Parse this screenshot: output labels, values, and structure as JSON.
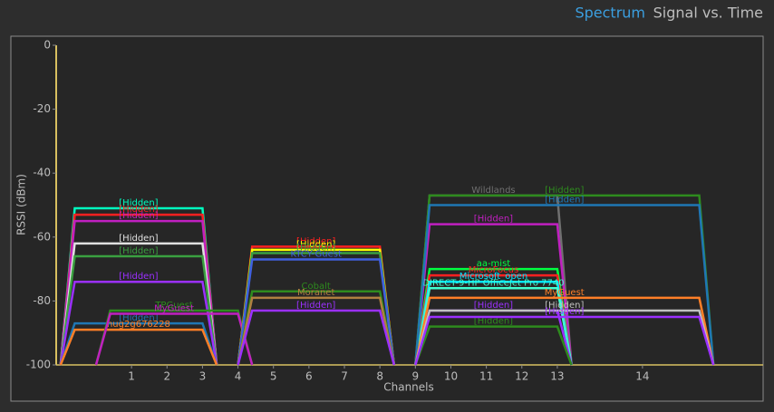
{
  "tabs": [
    "Spectrum",
    "Signal vs. Time"
  ],
  "chart_data": {
    "type": "spectrum",
    "y_label": "RSSI (dBm)",
    "x_label": "Channels",
    "ylim": [
      -100,
      0
    ],
    "yticks": [
      0,
      -20,
      -40,
      -60,
      -80,
      -100
    ],
    "xlim": [
      2395,
      2501
    ],
    "xticks": [
      {
        "value": 2412,
        "label": "1"
      },
      {
        "value": 2417,
        "label": "2"
      },
      {
        "value": 2422,
        "label": "3"
      },
      {
        "value": 2427,
        "label": "4"
      },
      {
        "value": 2432,
        "label": "5"
      },
      {
        "value": 2437,
        "label": "6"
      },
      {
        "value": 2442,
        "label": "7"
      },
      {
        "value": 2447,
        "label": "8"
      },
      {
        "value": 2452,
        "label": "9"
      },
      {
        "value": 2457,
        "label": "10"
      },
      {
        "value": 2462,
        "label": "11"
      },
      {
        "value": 2467,
        "label": "12"
      },
      {
        "value": 2472,
        "label": "13"
      },
      {
        "value": 2484,
        "label": "14"
      }
    ],
    "series": [
      {
        "name": "[Hidden]",
        "x": 2413,
        "width": 20,
        "value": -51,
        "color": "#00ffc0"
      },
      {
        "name": "[Hidden]",
        "x": 2413,
        "width": 20,
        "value": -53,
        "color": "#ff2020"
      },
      {
        "name": "[Hidden]",
        "x": 2413,
        "width": 20,
        "value": -55,
        "color": "#c020c0"
      },
      {
        "name": "[Hidden]",
        "x": 2413,
        "width": 20,
        "value": -62,
        "color": "#e0e0e0"
      },
      {
        "name": "[Hidden]",
        "x": 2413,
        "width": 20,
        "value": -66,
        "color": "#3aa040"
      },
      {
        "name": "[Hidden]",
        "x": 2413,
        "width": 20,
        "value": -74,
        "color": "#9b30ff"
      },
      {
        "name": "[Hidden]",
        "x": 2413,
        "width": 20,
        "value": -87,
        "color": "#1f77b4"
      },
      {
        "name": "hug2g676228",
        "x": 2413,
        "width": 20,
        "value": -89,
        "color": "#ff7f27"
      },
      {
        "name": "TPGuest",
        "x": 2418,
        "width": 20,
        "value": -83,
        "color": "#2e8b1e"
      },
      {
        "name": "MyGuest",
        "x": 2418,
        "width": 20,
        "value": -84,
        "color": "#c020c0"
      },
      {
        "name": "[Hidden]",
        "x": 2438,
        "width": 20,
        "value": -63,
        "color": "#ff2020"
      },
      {
        "name": "[Hidden]",
        "x": 2438,
        "width": 20,
        "value": -64,
        "color": "#ffff00"
      },
      {
        "name": "[Hidden]",
        "x": 2438,
        "width": 20,
        "value": -65,
        "color": "#3aa040"
      },
      {
        "name": "KTCY-Guest",
        "x": 2438,
        "width": 20,
        "value": -67,
        "color": "#4060e0"
      },
      {
        "name": "Cobalt",
        "x": 2438,
        "width": 20,
        "value": -77,
        "color": "#2e8b1e"
      },
      {
        "name": "Moranet",
        "x": 2438,
        "width": 20,
        "value": -79,
        "color": "#b08040"
      },
      {
        "name": "[Hidden]",
        "x": 2438,
        "width": 20,
        "value": -83,
        "color": "#9b30ff"
      },
      {
        "name": "Wildlands",
        "x": 2463,
        "width": 20,
        "value": -47,
        "color": "#707070"
      },
      {
        "name": "[Hidden]",
        "x": 2463,
        "width": 20,
        "value": -56,
        "color": "#c020c0"
      },
      {
        "name": "aa-mist",
        "x": 2463,
        "width": 20,
        "value": -70,
        "color": "#00ff40"
      },
      {
        "name": "MicroFocus",
        "x": 2463,
        "width": 20,
        "value": -72,
        "color": "#ff2020"
      },
      {
        "name": "Microsoft_open",
        "x": 2463,
        "width": 20,
        "value": -74,
        "color": "#00e5ff"
      },
      {
        "name": "DIRECT-9-HP OfficeJet Pro 7740",
        "x": 2463,
        "width": 20,
        "value": -76,
        "color": "#40ffd0"
      },
      {
        "name": "[Hidden]",
        "x": 2463,
        "width": 20,
        "value": -83,
        "color": "#9b30ff"
      },
      {
        "name": "[Hidden]",
        "x": 2463,
        "width": 20,
        "value": -88,
        "color": "#2e8b1e"
      },
      {
        "name": "[Hidden]",
        "x": 2473,
        "width": 40,
        "value": -47,
        "color": "#2e8b1e"
      },
      {
        "name": "[Hidden]",
        "x": 2473,
        "width": 40,
        "value": -50,
        "color": "#1f77b4"
      },
      {
        "name": "MyGuest",
        "x": 2473,
        "width": 40,
        "value": -79,
        "color": "#ff7f27"
      },
      {
        "name": "[Hidden]",
        "x": 2473,
        "width": 40,
        "value": -83,
        "color": "#c0c0c0"
      },
      {
        "name": "[Hidden]",
        "x": 2473,
        "width": 40,
        "value": -85,
        "color": "#9b30ff"
      }
    ]
  }
}
